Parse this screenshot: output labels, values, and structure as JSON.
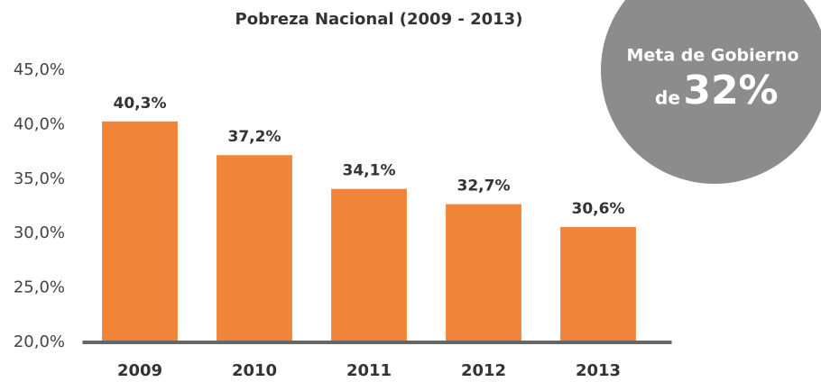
{
  "chart_data": {
    "type": "bar",
    "title": "Pobreza Nacional (2009 - 2013)",
    "categories": [
      "2009",
      "2010",
      "2011",
      "2012",
      "2013"
    ],
    "values": [
      40.3,
      37.2,
      34.1,
      32.7,
      30.6
    ],
    "value_labels": [
      "40,3%",
      "37,2%",
      "34,1%",
      "32,7%",
      "30,6%"
    ],
    "color": "#f0853a",
    "ylim": [
      20,
      45
    ],
    "yticks": [
      {
        "value": 20,
        "label": "20,0%"
      },
      {
        "value": 25,
        "label": "25,0%"
      },
      {
        "value": 30,
        "label": "30,0%"
      },
      {
        "value": 35,
        "label": "35,0%"
      },
      {
        "value": 40,
        "label": "40,0%"
      },
      {
        "value": 45,
        "label": "45,0%"
      }
    ],
    "grid": false,
    "annotation": [
      "Meta de Gobierno",
      "de",
      "32%"
    ]
  }
}
